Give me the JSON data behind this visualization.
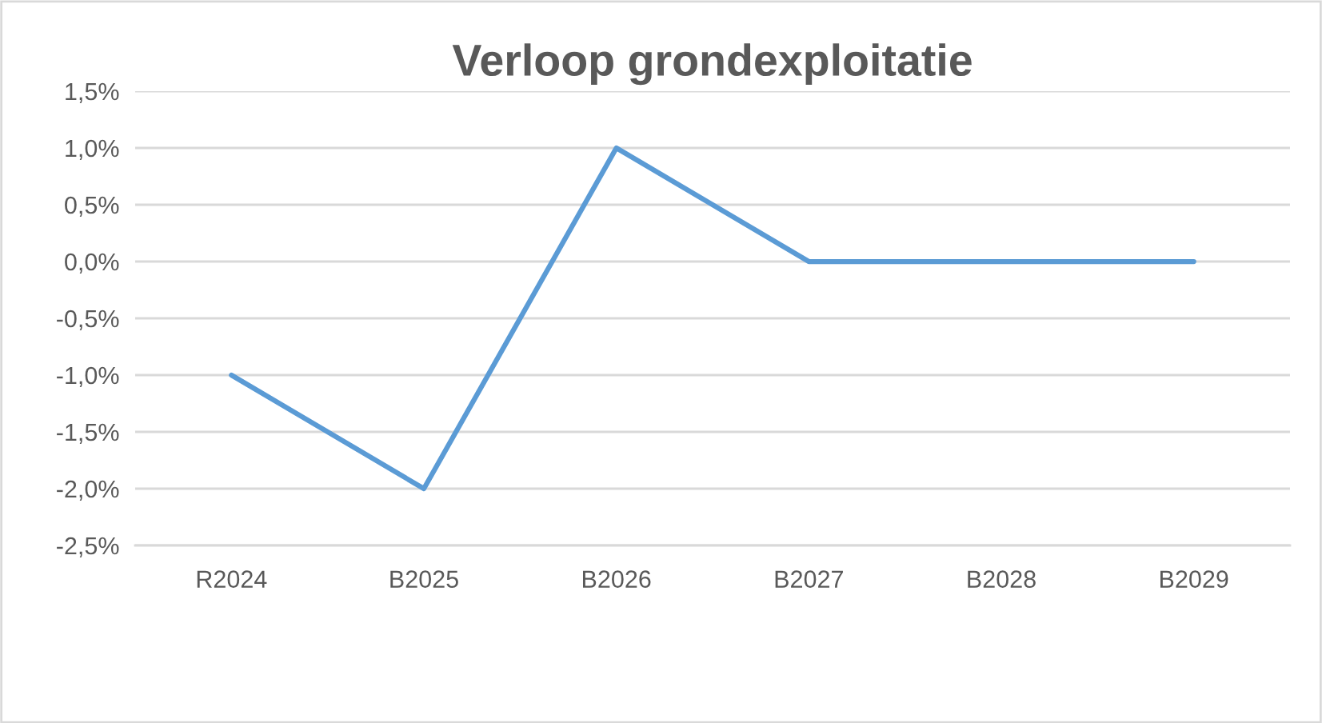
{
  "chart_data": {
    "type": "line",
    "title": "Verloop grondexploitatie",
    "categories": [
      "R2024",
      "B2025",
      "B2026",
      "B2027",
      "B2028",
      "B2029"
    ],
    "series": [
      {
        "color": "#5b9bd5",
        "values": [
          -1.0,
          -2.0,
          1.0,
          0.0,
          0.0,
          0.0
        ]
      }
    ],
    "ylim": [
      -2.5,
      1.5
    ],
    "yticks": [
      {
        "value": -2.5,
        "label": "-2,5%"
      },
      {
        "value": -2.0,
        "label": "-2,0%"
      },
      {
        "value": -1.5,
        "label": "-1,5%"
      },
      {
        "value": -1.0,
        "label": "-1,0%"
      },
      {
        "value": -0.5,
        "label": "-0,5%"
      },
      {
        "value": 0.0,
        "label": "0,0%"
      },
      {
        "value": 0.5,
        "label": "0,5%"
      },
      {
        "value": 1.0,
        "label": "1,0%"
      },
      {
        "value": 1.5,
        "label": "1,5%"
      }
    ],
    "grid": "y",
    "legend": false,
    "marker": "none",
    "line_style": "solid"
  }
}
